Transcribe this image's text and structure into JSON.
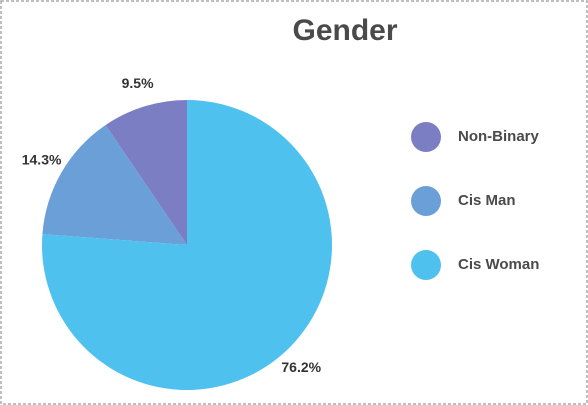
{
  "chart_data": {
    "type": "pie",
    "title": "Gender",
    "categories": [
      "Non-Binary",
      "Cis Man",
      "Cis Woman"
    ],
    "values": [
      9.5,
      14.3,
      76.2
    ],
    "value_labels": [
      "9.5%",
      "14.3%",
      "76.2%"
    ],
    "colors": [
      "#7c7ec3",
      "#6a9fd8",
      "#4fc1ee"
    ],
    "legend": "right"
  }
}
